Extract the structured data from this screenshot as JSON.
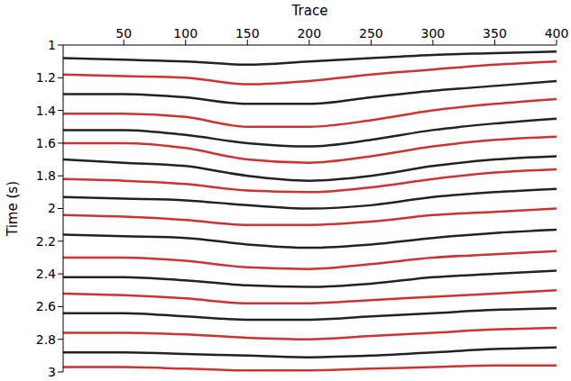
{
  "chart_data": {
    "type": "line",
    "xlabel": "Trace",
    "ylabel": "Time (s)",
    "x": [
      1,
      50,
      100,
      150,
      200,
      250,
      300,
      350,
      400
    ],
    "xlim": [
      1,
      400
    ],
    "xticks": [
      50,
      100,
      150,
      200,
      250,
      300,
      350,
      400
    ],
    "ylim": [
      1,
      3
    ],
    "yticks": [
      1,
      1.2,
      1.4,
      1.6,
      1.8,
      2,
      2.2,
      2.4,
      2.6,
      2.8,
      3
    ],
    "series": [
      {
        "color": "#222222",
        "values": [
          1.08,
          1.09,
          1.1,
          1.12,
          1.1,
          1.08,
          1.06,
          1.05,
          1.04
        ]
      },
      {
        "color": "#cc3333",
        "values": [
          1.18,
          1.19,
          1.2,
          1.24,
          1.22,
          1.18,
          1.15,
          1.12,
          1.1
        ]
      },
      {
        "color": "#222222",
        "values": [
          1.3,
          1.3,
          1.32,
          1.36,
          1.36,
          1.32,
          1.28,
          1.25,
          1.22
        ]
      },
      {
        "color": "#cc3333",
        "values": [
          1.42,
          1.42,
          1.44,
          1.5,
          1.5,
          1.46,
          1.4,
          1.36,
          1.33
        ]
      },
      {
        "color": "#222222",
        "values": [
          1.52,
          1.52,
          1.55,
          1.6,
          1.62,
          1.58,
          1.52,
          1.48,
          1.45
        ]
      },
      {
        "color": "#cc3333",
        "values": [
          1.6,
          1.6,
          1.63,
          1.7,
          1.72,
          1.68,
          1.62,
          1.58,
          1.56
        ]
      },
      {
        "color": "#222222",
        "values": [
          1.7,
          1.72,
          1.74,
          1.8,
          1.83,
          1.8,
          1.74,
          1.7,
          1.68
        ]
      },
      {
        "color": "#cc3333",
        "values": [
          1.82,
          1.83,
          1.85,
          1.89,
          1.9,
          1.87,
          1.82,
          1.78,
          1.76
        ]
      },
      {
        "color": "#222222",
        "values": [
          1.93,
          1.94,
          1.95,
          1.98,
          2.0,
          1.98,
          1.93,
          1.9,
          1.88
        ]
      },
      {
        "color": "#cc3333",
        "values": [
          2.04,
          2.05,
          2.07,
          2.1,
          2.1,
          2.08,
          2.04,
          2.02,
          2.0
        ]
      },
      {
        "color": "#222222",
        "values": [
          2.16,
          2.17,
          2.18,
          2.22,
          2.24,
          2.22,
          2.18,
          2.15,
          2.13
        ]
      },
      {
        "color": "#cc3333",
        "values": [
          2.3,
          2.3,
          2.32,
          2.36,
          2.37,
          2.34,
          2.3,
          2.28,
          2.26
        ]
      },
      {
        "color": "#222222",
        "values": [
          2.42,
          2.42,
          2.44,
          2.47,
          2.48,
          2.46,
          2.42,
          2.4,
          2.38
        ]
      },
      {
        "color": "#cc3333",
        "values": [
          2.52,
          2.53,
          2.55,
          2.58,
          2.58,
          2.56,
          2.54,
          2.52,
          2.5
        ]
      },
      {
        "color": "#222222",
        "values": [
          2.64,
          2.64,
          2.66,
          2.68,
          2.68,
          2.66,
          2.64,
          2.62,
          2.61
        ]
      },
      {
        "color": "#cc3333",
        "values": [
          2.76,
          2.76,
          2.77,
          2.79,
          2.8,
          2.78,
          2.76,
          2.74,
          2.73
        ]
      },
      {
        "color": "#222222",
        "values": [
          2.88,
          2.88,
          2.89,
          2.9,
          2.91,
          2.9,
          2.88,
          2.86,
          2.85
        ]
      },
      {
        "color": "#cc3333",
        "values": [
          2.97,
          2.97,
          2.98,
          2.99,
          2.99,
          2.98,
          2.97,
          2.96,
          2.96
        ]
      }
    ]
  }
}
